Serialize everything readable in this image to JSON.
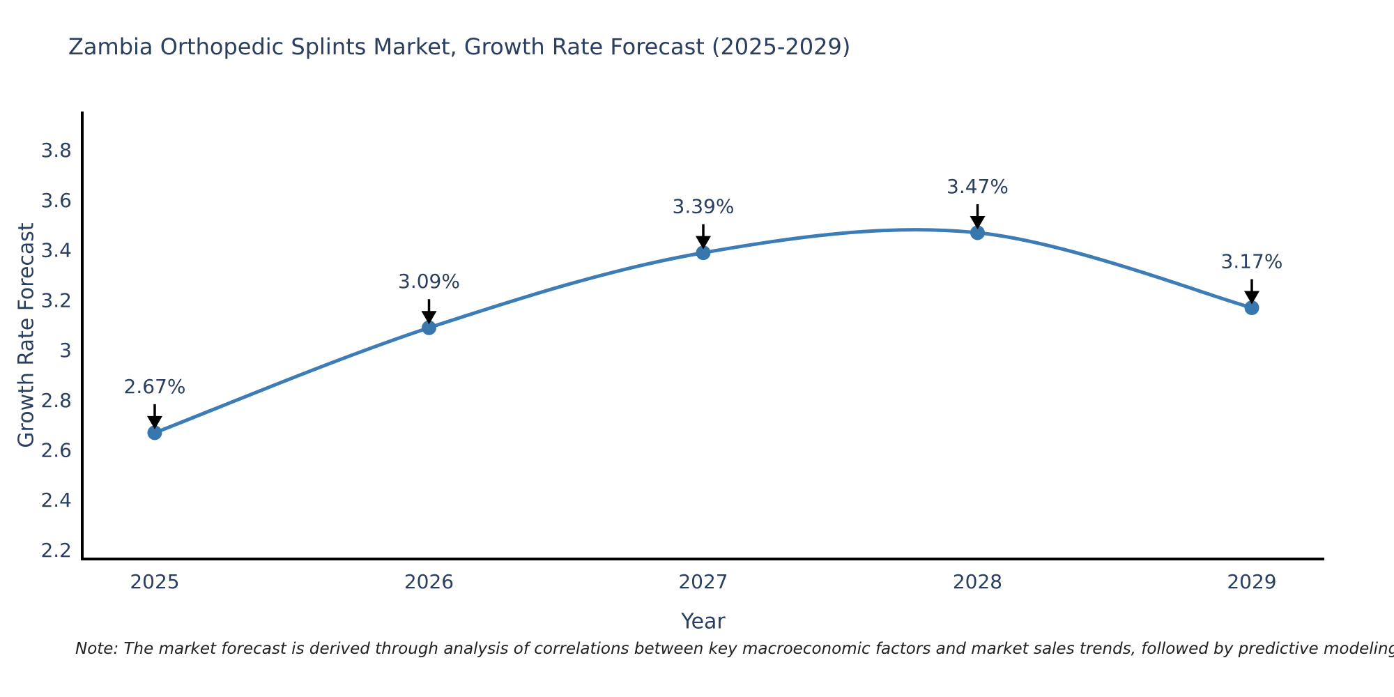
{
  "header": {
    "title": "Zambia Orthopedic Splints Market, Growth Rate Forecast (2025-2029)"
  },
  "footer": {
    "note": "Note: The market forecast is derived through analysis of correlations between key macroeconomic factors and market sales trends, followed by predictive modeling to project future sales"
  },
  "chart_data": {
    "type": "line",
    "title": "Zambia Orthopedic Splints Market, Growth Rate Forecast (2025-2029)",
    "x": [
      2025,
      2026,
      2027,
      2028,
      2029
    ],
    "values": [
      2.67,
      3.09,
      3.39,
      3.47,
      3.17
    ],
    "point_labels": [
      "2.67%",
      "3.09%",
      "3.39%",
      "3.47%",
      "3.17%"
    ],
    "xlabel": "Year",
    "ylabel": "Growth Rate Forecast",
    "y_ticks": [
      3.8,
      3.6,
      3.4,
      3.2,
      3,
      2.8,
      2.6,
      2.4,
      2.2
    ],
    "ylim": [
      2.165,
      3.955
    ],
    "line_shape": "spline",
    "grid": false,
    "legend": "none",
    "colors": {
      "line": "#3e7cb5",
      "marker": "#3876ae",
      "axis": "#000000",
      "tick_text": "#2a3f5f",
      "annotation_text": "#2a3f5f",
      "arrow": "#000000",
      "background": "#ffffff"
    }
  }
}
